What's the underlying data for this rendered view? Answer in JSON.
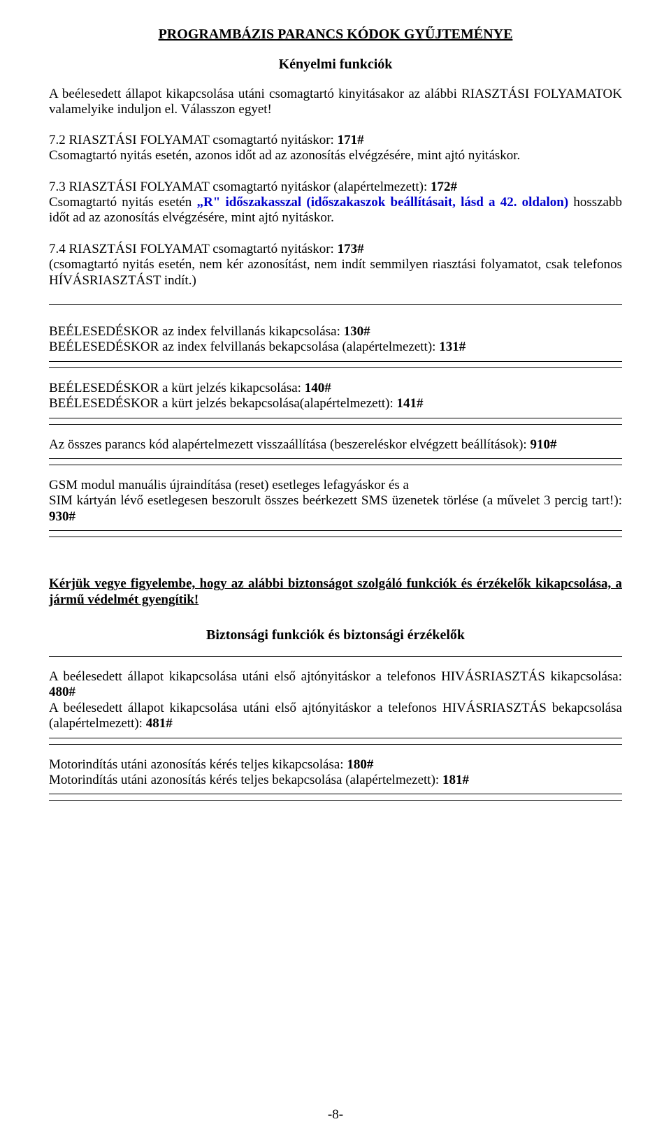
{
  "colors": {
    "text": "#000000",
    "link_blue": "#0000cc",
    "background": "#ffffff",
    "rule": "#000000"
  },
  "typography": {
    "font_family": "Times New Roman",
    "title_size_pt": 15,
    "body_size_pt": 14
  },
  "title": "PROGRAMBÁZIS PARANCS KÓDOK GYŰJTEMÉNYE",
  "subtitle": "Kényelmi funkciók",
  "intro": "A beélesedett állapot kikapcsolása utáni csomagtartó kinyitásakor az alábbi RIASZTÁSI FOLYAMATOK valamelyike induljon el. Válasszon egyet!",
  "p72": {
    "lead": "7.2 RIASZTÁSI FOLYAMAT csomagtartó nyitáskor: ",
    "code": "171#",
    "body": "Csomagtartó nyitás esetén, azonos időt ad az azonosítás elvégzésére, mint ajtó nyitáskor."
  },
  "p73": {
    "lead": "7.3 RIASZTÁSI FOLYAMAT csomagtartó nyitáskor (alapértelmezett): ",
    "code": "172#",
    "body1": "Csomagtartó nyitás esetén ",
    "body2_bold": "„R\" időszakasszal (időszakaszok beállításait, lásd a 42. oldalon)",
    "body3": " hosszabb időt ad az azonosítás elvégzésére, mint ajtó nyitáskor."
  },
  "p74": {
    "lead": "7.4 RIASZTÁSI FOLYAMAT csomagtartó nyitáskor: ",
    "code": "173#",
    "body": "(csomagtartó nyitás esetén, nem kér azonosítást, nem indít semmilyen riasztási folyamatot, csak telefonos HÍVÁSRIASZTÁST indít.)"
  },
  "index": {
    "off_text": "BEÉLESEDÉSKOR az index felvillanás kikapcsolása: ",
    "off_code": "130#",
    "on_text": "BEÉLESEDÉSKOR az index felvillanás bekapcsolása (alapértelmezett): ",
    "on_code": "131#"
  },
  "horn": {
    "off_text": "BEÉLESEDÉSKOR a kürt jelzés kikapcsolása: ",
    "off_code": "140#",
    "on_text": "BEÉLESEDÉSKOR a kürt jelzés bekapcsolása(alapértelmezett): ",
    "on_code": "141#"
  },
  "reset_all": {
    "text": "Az összes parancs kód alapértelmezett visszaállítása (beszereléskor elvégzett beállítások): ",
    "code": "910#"
  },
  "gsm": {
    "line1": "GSM modul manuális újraindítása (reset) esetleges lefagyáskor és a",
    "line2": "SIM kártyán lévő esetlegesen beszorult összes beérkezett SMS üzenetek törlése (a művelet 3 percig tart!): ",
    "code": "930#"
  },
  "notice": "Kérjük vegye figyelembe, hogy az alábbi biztonságot szolgáló funkciók és érzékelők kikapcsolása, a jármű védelmét gyengítik!",
  "subtitle2": "Biztonsági funkciók és biztonsági érzékelők",
  "doorcall": {
    "off_text": "A beélesedett állapot kikapcsolása utáni első ajtónyitáskor a telefonos HIVÁSRIASZTÁS kikapcsolása: ",
    "off_code": "480#",
    "on_text": "A beélesedett állapot kikapcsolása utáni első ajtónyitáskor a telefonos HIVÁSRIASZTÁS bekapcsolása (alapértelmezett): ",
    "on_code": "481#"
  },
  "motorid": {
    "off_text": "Motorindítás utáni azonosítás kérés teljes kikapcsolása: ",
    "off_code": "180#",
    "on_text": "Motorindítás utáni azonosítás kérés teljes bekapcsolása (alapértelmezett): ",
    "on_code": "181#"
  },
  "footer": "-8-"
}
